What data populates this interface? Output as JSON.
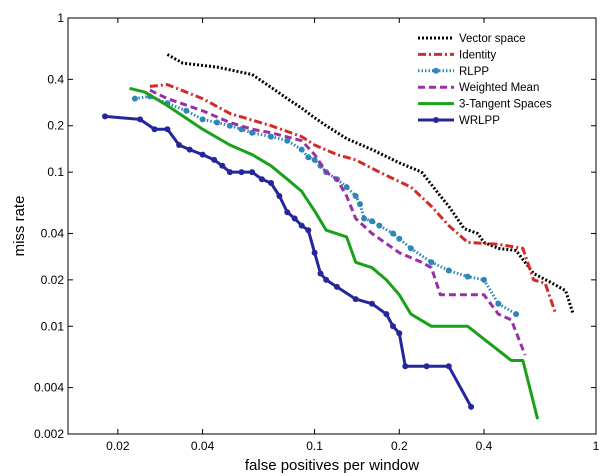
{
  "chart_data": {
    "type": "line",
    "title": "",
    "xlabel": "false positives per window",
    "ylabel": "miss rate",
    "xscale": "log",
    "yscale": "log",
    "xlim": [
      0.0133,
      1
    ],
    "ylim": [
      0.002,
      1
    ],
    "grid": false,
    "legend_position": "top-right",
    "x_ticks": [
      {
        "value": 0.02,
        "label": "0.02"
      },
      {
        "value": 0.04,
        "label": "0.04"
      },
      {
        "value": 0.1,
        "label": "0.1"
      },
      {
        "value": 0.2,
        "label": "0.2"
      },
      {
        "value": 0.4,
        "label": "0.4"
      },
      {
        "value": 1,
        "label": "1"
      }
    ],
    "y_ticks": [
      {
        "value": 0.002,
        "label": "0.002"
      },
      {
        "value": 0.004,
        "label": "0.004"
      },
      {
        "value": 0.01,
        "label": "0.01"
      },
      {
        "value": 0.02,
        "label": "0.02"
      },
      {
        "value": 0.04,
        "label": "0.04"
      },
      {
        "value": 0.1,
        "label": "0.1"
      },
      {
        "value": 0.2,
        "label": "0.2"
      },
      {
        "value": 0.4,
        "label": "0.4"
      },
      {
        "value": 1,
        "label": "1"
      }
    ],
    "series": [
      {
        "name": "Vector space",
        "color": "#000000",
        "dash": "2,2",
        "marker": false,
        "points": [
          [
            0.03,
            0.58
          ],
          [
            0.034,
            0.51
          ],
          [
            0.045,
            0.48
          ],
          [
            0.06,
            0.43
          ],
          [
            0.07,
            0.355
          ],
          [
            0.08,
            0.3
          ],
          [
            0.09,
            0.26
          ],
          [
            0.1,
            0.225
          ],
          [
            0.11,
            0.2
          ],
          [
            0.13,
            0.165
          ],
          [
            0.16,
            0.14
          ],
          [
            0.2,
            0.115
          ],
          [
            0.24,
            0.1
          ],
          [
            0.28,
            0.07
          ],
          [
            0.3,
            0.06
          ],
          [
            0.34,
            0.043
          ],
          [
            0.38,
            0.04
          ],
          [
            0.4,
            0.035
          ],
          [
            0.45,
            0.032
          ],
          [
            0.52,
            0.031
          ],
          [
            0.6,
            0.022
          ],
          [
            0.7,
            0.019
          ],
          [
            0.78,
            0.017
          ],
          [
            0.83,
            0.012
          ]
        ]
      },
      {
        "name": "Identity",
        "color": "#d42a2a",
        "dash": "8,3,2,3",
        "marker": false,
        "points": [
          [
            0.026,
            0.36
          ],
          [
            0.03,
            0.37
          ],
          [
            0.04,
            0.3
          ],
          [
            0.05,
            0.24
          ],
          [
            0.07,
            0.2
          ],
          [
            0.09,
            0.17
          ],
          [
            0.1,
            0.15
          ],
          [
            0.12,
            0.13
          ],
          [
            0.14,
            0.12
          ],
          [
            0.17,
            0.1
          ],
          [
            0.22,
            0.08
          ],
          [
            0.26,
            0.06
          ],
          [
            0.3,
            0.045
          ],
          [
            0.35,
            0.035
          ],
          [
            0.45,
            0.034
          ],
          [
            0.55,
            0.032
          ],
          [
            0.6,
            0.02
          ],
          [
            0.66,
            0.019
          ],
          [
            0.72,
            0.012
          ]
        ]
      },
      {
        "name": "RLPP",
        "color": "#2f86b8",
        "dash": "1.5,2",
        "marker": true,
        "points": [
          [
            0.023,
            0.3
          ],
          [
            0.026,
            0.31
          ],
          [
            0.03,
            0.28
          ],
          [
            0.035,
            0.25
          ],
          [
            0.04,
            0.22
          ],
          [
            0.045,
            0.21
          ],
          [
            0.05,
            0.2
          ],
          [
            0.055,
            0.19
          ],
          [
            0.06,
            0.18
          ],
          [
            0.07,
            0.17
          ],
          [
            0.08,
            0.16
          ],
          [
            0.09,
            0.14
          ],
          [
            0.095,
            0.125
          ],
          [
            0.1,
            0.12
          ],
          [
            0.105,
            0.11
          ],
          [
            0.11,
            0.1
          ],
          [
            0.12,
            0.09
          ],
          [
            0.13,
            0.08
          ],
          [
            0.14,
            0.07
          ],
          [
            0.145,
            0.062
          ],
          [
            0.15,
            0.05
          ],
          [
            0.16,
            0.048
          ],
          [
            0.17,
            0.045
          ],
          [
            0.19,
            0.04
          ],
          [
            0.2,
            0.037
          ],
          [
            0.22,
            0.032
          ],
          [
            0.26,
            0.026
          ],
          [
            0.3,
            0.023
          ],
          [
            0.35,
            0.021
          ],
          [
            0.4,
            0.02
          ],
          [
            0.45,
            0.014
          ],
          [
            0.52,
            0.012
          ]
        ]
      },
      {
        "name": "Weighted Mean",
        "color": "#9b30a6",
        "dash": "7,4",
        "marker": false,
        "points": [
          [
            0.026,
            0.34
          ],
          [
            0.03,
            0.3
          ],
          [
            0.04,
            0.25
          ],
          [
            0.05,
            0.21
          ],
          [
            0.06,
            0.19
          ],
          [
            0.07,
            0.18
          ],
          [
            0.09,
            0.16
          ],
          [
            0.1,
            0.13
          ],
          [
            0.11,
            0.1
          ],
          [
            0.12,
            0.09
          ],
          [
            0.13,
            0.07
          ],
          [
            0.14,
            0.05
          ],
          [
            0.16,
            0.04
          ],
          [
            0.2,
            0.03
          ],
          [
            0.24,
            0.026
          ],
          [
            0.26,
            0.024
          ],
          [
            0.28,
            0.016
          ],
          [
            0.4,
            0.016
          ],
          [
            0.45,
            0.012
          ],
          [
            0.5,
            0.011
          ],
          [
            0.56,
            0.0065
          ]
        ]
      },
      {
        "name": "3-Tangent Spaces",
        "color": "#1aa01a",
        "dash": "",
        "marker": false,
        "points": [
          [
            0.022,
            0.35
          ],
          [
            0.025,
            0.33
          ],
          [
            0.03,
            0.27
          ],
          [
            0.04,
            0.19
          ],
          [
            0.05,
            0.15
          ],
          [
            0.06,
            0.13
          ],
          [
            0.07,
            0.11
          ],
          [
            0.08,
            0.09
          ],
          [
            0.09,
            0.075
          ],
          [
            0.1,
            0.056
          ],
          [
            0.11,
            0.042
          ],
          [
            0.13,
            0.038
          ],
          [
            0.14,
            0.026
          ],
          [
            0.16,
            0.024
          ],
          [
            0.18,
            0.02
          ],
          [
            0.2,
            0.016
          ],
          [
            0.22,
            0.012
          ],
          [
            0.26,
            0.01
          ],
          [
            0.35,
            0.01
          ],
          [
            0.5,
            0.006
          ],
          [
            0.55,
            0.006
          ],
          [
            0.62,
            0.0025
          ]
        ]
      },
      {
        "name": "WRLPP",
        "color": "#26269c",
        "dash": "",
        "marker": true,
        "points": [
          [
            0.018,
            0.23
          ],
          [
            0.024,
            0.22
          ],
          [
            0.027,
            0.19
          ],
          [
            0.03,
            0.19
          ],
          [
            0.033,
            0.15
          ],
          [
            0.036,
            0.14
          ],
          [
            0.04,
            0.13
          ],
          [
            0.044,
            0.12
          ],
          [
            0.047,
            0.11
          ],
          [
            0.05,
            0.1
          ],
          [
            0.055,
            0.1
          ],
          [
            0.06,
            0.1
          ],
          [
            0.065,
            0.09
          ],
          [
            0.07,
            0.085
          ],
          [
            0.075,
            0.07
          ],
          [
            0.08,
            0.055
          ],
          [
            0.085,
            0.05
          ],
          [
            0.09,
            0.045
          ],
          [
            0.095,
            0.042
          ],
          [
            0.1,
            0.03
          ],
          [
            0.105,
            0.022
          ],
          [
            0.11,
            0.02
          ],
          [
            0.12,
            0.018
          ],
          [
            0.14,
            0.015
          ],
          [
            0.16,
            0.014
          ],
          [
            0.18,
            0.012
          ],
          [
            0.19,
            0.01
          ],
          [
            0.2,
            0.009
          ],
          [
            0.21,
            0.0055
          ],
          [
            0.25,
            0.0055
          ],
          [
            0.3,
            0.0055
          ],
          [
            0.36,
            0.003
          ]
        ]
      }
    ]
  }
}
